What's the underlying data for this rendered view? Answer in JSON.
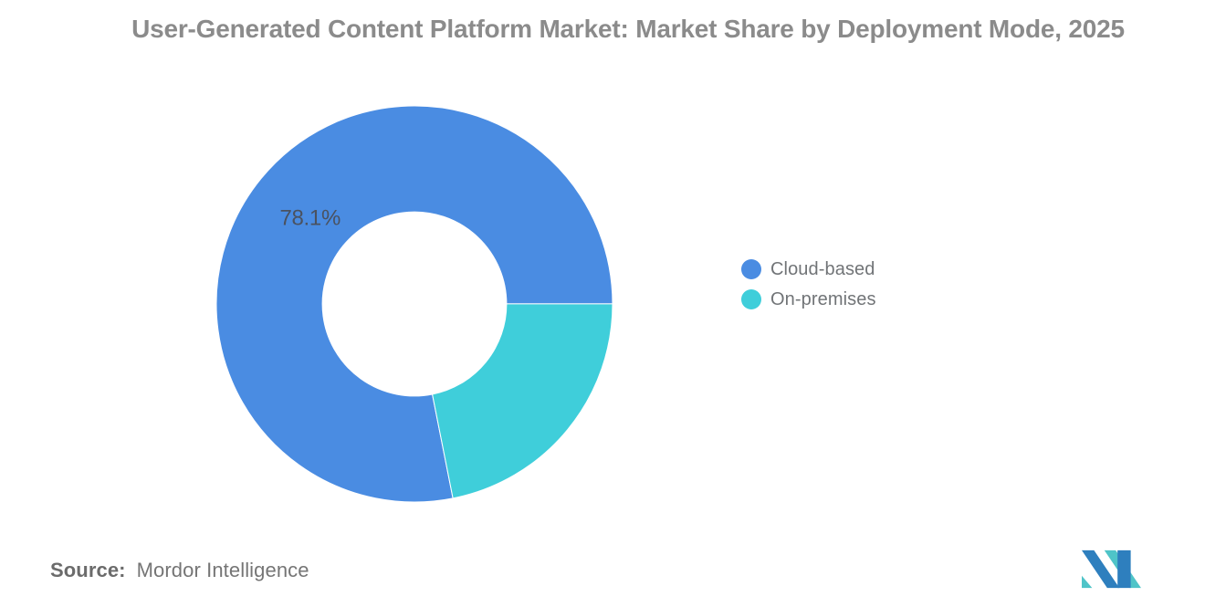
{
  "title": {
    "text": "User-Generated Content Platform Market: Market Share by Deployment Mode, 2025"
  },
  "chart_data": {
    "type": "pie",
    "subtype": "donut",
    "title": "User-Generated Content Platform Market: Market Share by Deployment Mode, 2025",
    "units": "percent",
    "series": [
      {
        "name": "Cloud-based",
        "value": 78.1,
        "label": "78.1%",
        "color": "#4A8CE2"
      },
      {
        "name": "On-premises",
        "value": 21.9,
        "color": "#3FCEDA"
      }
    ],
    "legend_position": "right",
    "start_angle_deg": 168.8,
    "inner_radius_ratio": 0.465,
    "slice_border_color": "#ffffff"
  },
  "legend": {
    "items": [
      {
        "label": "Cloud-based"
      },
      {
        "label": "On-premises"
      }
    ]
  },
  "source": {
    "prefix": "Source:",
    "text": "Mordor Intelligence"
  },
  "logo": {
    "alt": "Mordor Intelligence logo",
    "colors": {
      "blue": "#2E7FBE",
      "teal": "#4FC4C8"
    }
  }
}
